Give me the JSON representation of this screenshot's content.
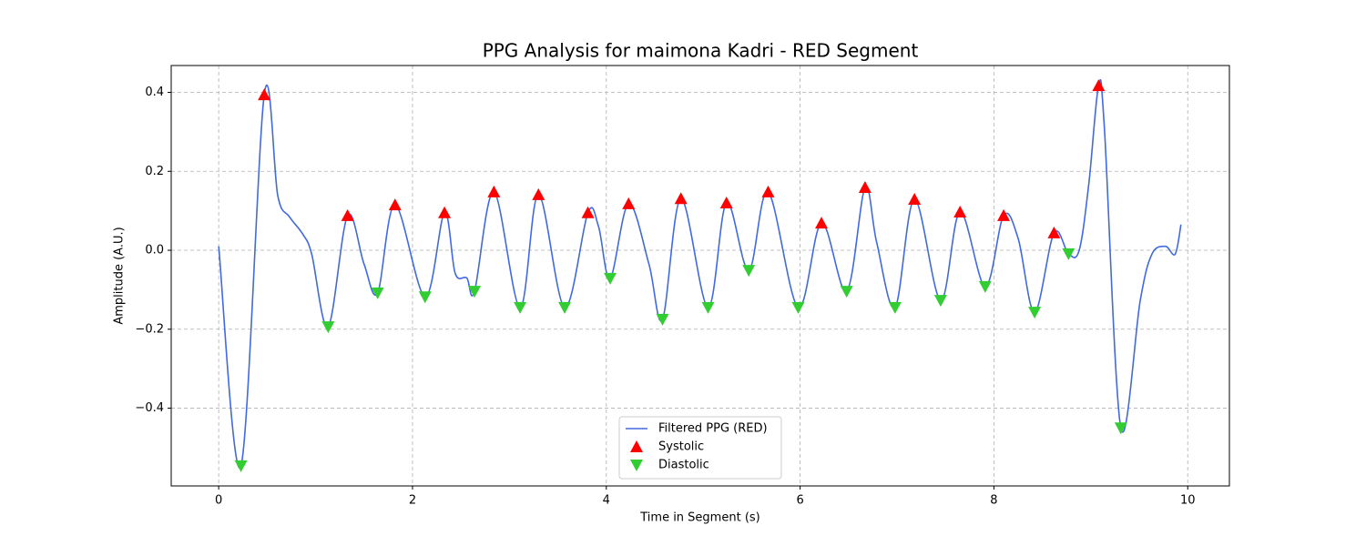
{
  "chart_data": {
    "type": "line",
    "title": "PPG Analysis for maimona Kadri - RED Segment",
    "xlabel": "Time in Segment (s)",
    "ylabel": "Amplitude (A.U.)",
    "xlim": [
      -0.49,
      10.43
    ],
    "ylim": [
      -0.597,
      0.468
    ],
    "xticks": [
      0,
      2,
      4,
      6,
      8,
      10
    ],
    "yticks": [
      {
        "value": -0.4,
        "label": "−0.4"
      },
      {
        "value": -0.2,
        "label": "−0.2"
      },
      {
        "value": 0,
        "label": "0.0"
      },
      0.2,
      0.4
    ],
    "grid": true,
    "legend": "lower center",
    "series": [
      {
        "name": "Filtered PPG (RED)",
        "color": "#4169e1",
        "kind": "line",
        "x": [
          0,
          0.23,
          0.47,
          0.61,
          0.73,
          0.87,
          0.96,
          1.13,
          1.33,
          1.5,
          1.64,
          1.82,
          2.13,
          2.33,
          2.44,
          2.56,
          2.64,
          2.84,
          3.11,
          3.3,
          3.57,
          3.81,
          3.92,
          4.04,
          4.23,
          4.44,
          4.58,
          4.77,
          5.05,
          5.24,
          5.47,
          5.67,
          5.98,
          6.22,
          6.48,
          6.67,
          6.79,
          6.98,
          7.18,
          7.45,
          7.65,
          7.91,
          8.1,
          8.25,
          8.42,
          8.62,
          8.77,
          8.88,
          8.98,
          9.08,
          9.14,
          9.31,
          9.51,
          9.63,
          9.77,
          9.87,
          9.93
        ],
        "values": [
          0.01,
          -0.546,
          0.394,
          0.138,
          0.085,
          0.04,
          -0.01,
          -0.194,
          0.088,
          -0.035,
          -0.108,
          0.115,
          -0.118,
          0.095,
          -0.058,
          -0.07,
          -0.104,
          0.148,
          -0.145,
          0.141,
          -0.145,
          0.095,
          0.06,
          -0.071,
          0.118,
          -0.035,
          -0.175,
          0.131,
          -0.145,
          0.12,
          -0.051,
          0.148,
          -0.145,
          0.069,
          -0.104,
          0.159,
          0.02,
          -0.145,
          0.129,
          -0.127,
          0.097,
          -0.092,
          0.088,
          0.03,
          -0.157,
          0.044,
          -0.009,
          0.0,
          0.17,
          0.417,
          0.31,
          -0.45,
          -0.127,
          -0.01,
          0.01,
          -0.01,
          0.065
        ]
      },
      {
        "name": "Systolic",
        "color": "#ff0000",
        "kind": "peaks",
        "x": [
          0.47,
          1.33,
          1.82,
          2.33,
          2.84,
          3.3,
          3.81,
          4.23,
          4.77,
          5.24,
          5.67,
          6.22,
          6.67,
          7.18,
          7.65,
          8.1,
          8.62,
          9.08
        ],
        "values": [
          0.394,
          0.088,
          0.115,
          0.095,
          0.148,
          0.141,
          0.095,
          0.118,
          0.131,
          0.12,
          0.148,
          0.069,
          0.159,
          0.129,
          0.097,
          0.088,
          0.044,
          0.417
        ]
      },
      {
        "name": "Diastolic",
        "color": "#32cd32",
        "kind": "troughs",
        "x": [
          0.23,
          1.13,
          1.64,
          2.13,
          2.64,
          3.11,
          3.57,
          4.04,
          4.58,
          5.05,
          5.47,
          5.98,
          6.48,
          6.98,
          7.45,
          7.91,
          8.42,
          8.77,
          9.31
        ],
        "values": [
          -0.546,
          -0.194,
          -0.108,
          -0.118,
          -0.104,
          -0.145,
          -0.145,
          -0.071,
          -0.175,
          -0.145,
          -0.051,
          -0.145,
          -0.104,
          -0.145,
          -0.127,
          -0.092,
          -0.157,
          -0.009,
          -0.45
        ]
      }
    ]
  }
}
